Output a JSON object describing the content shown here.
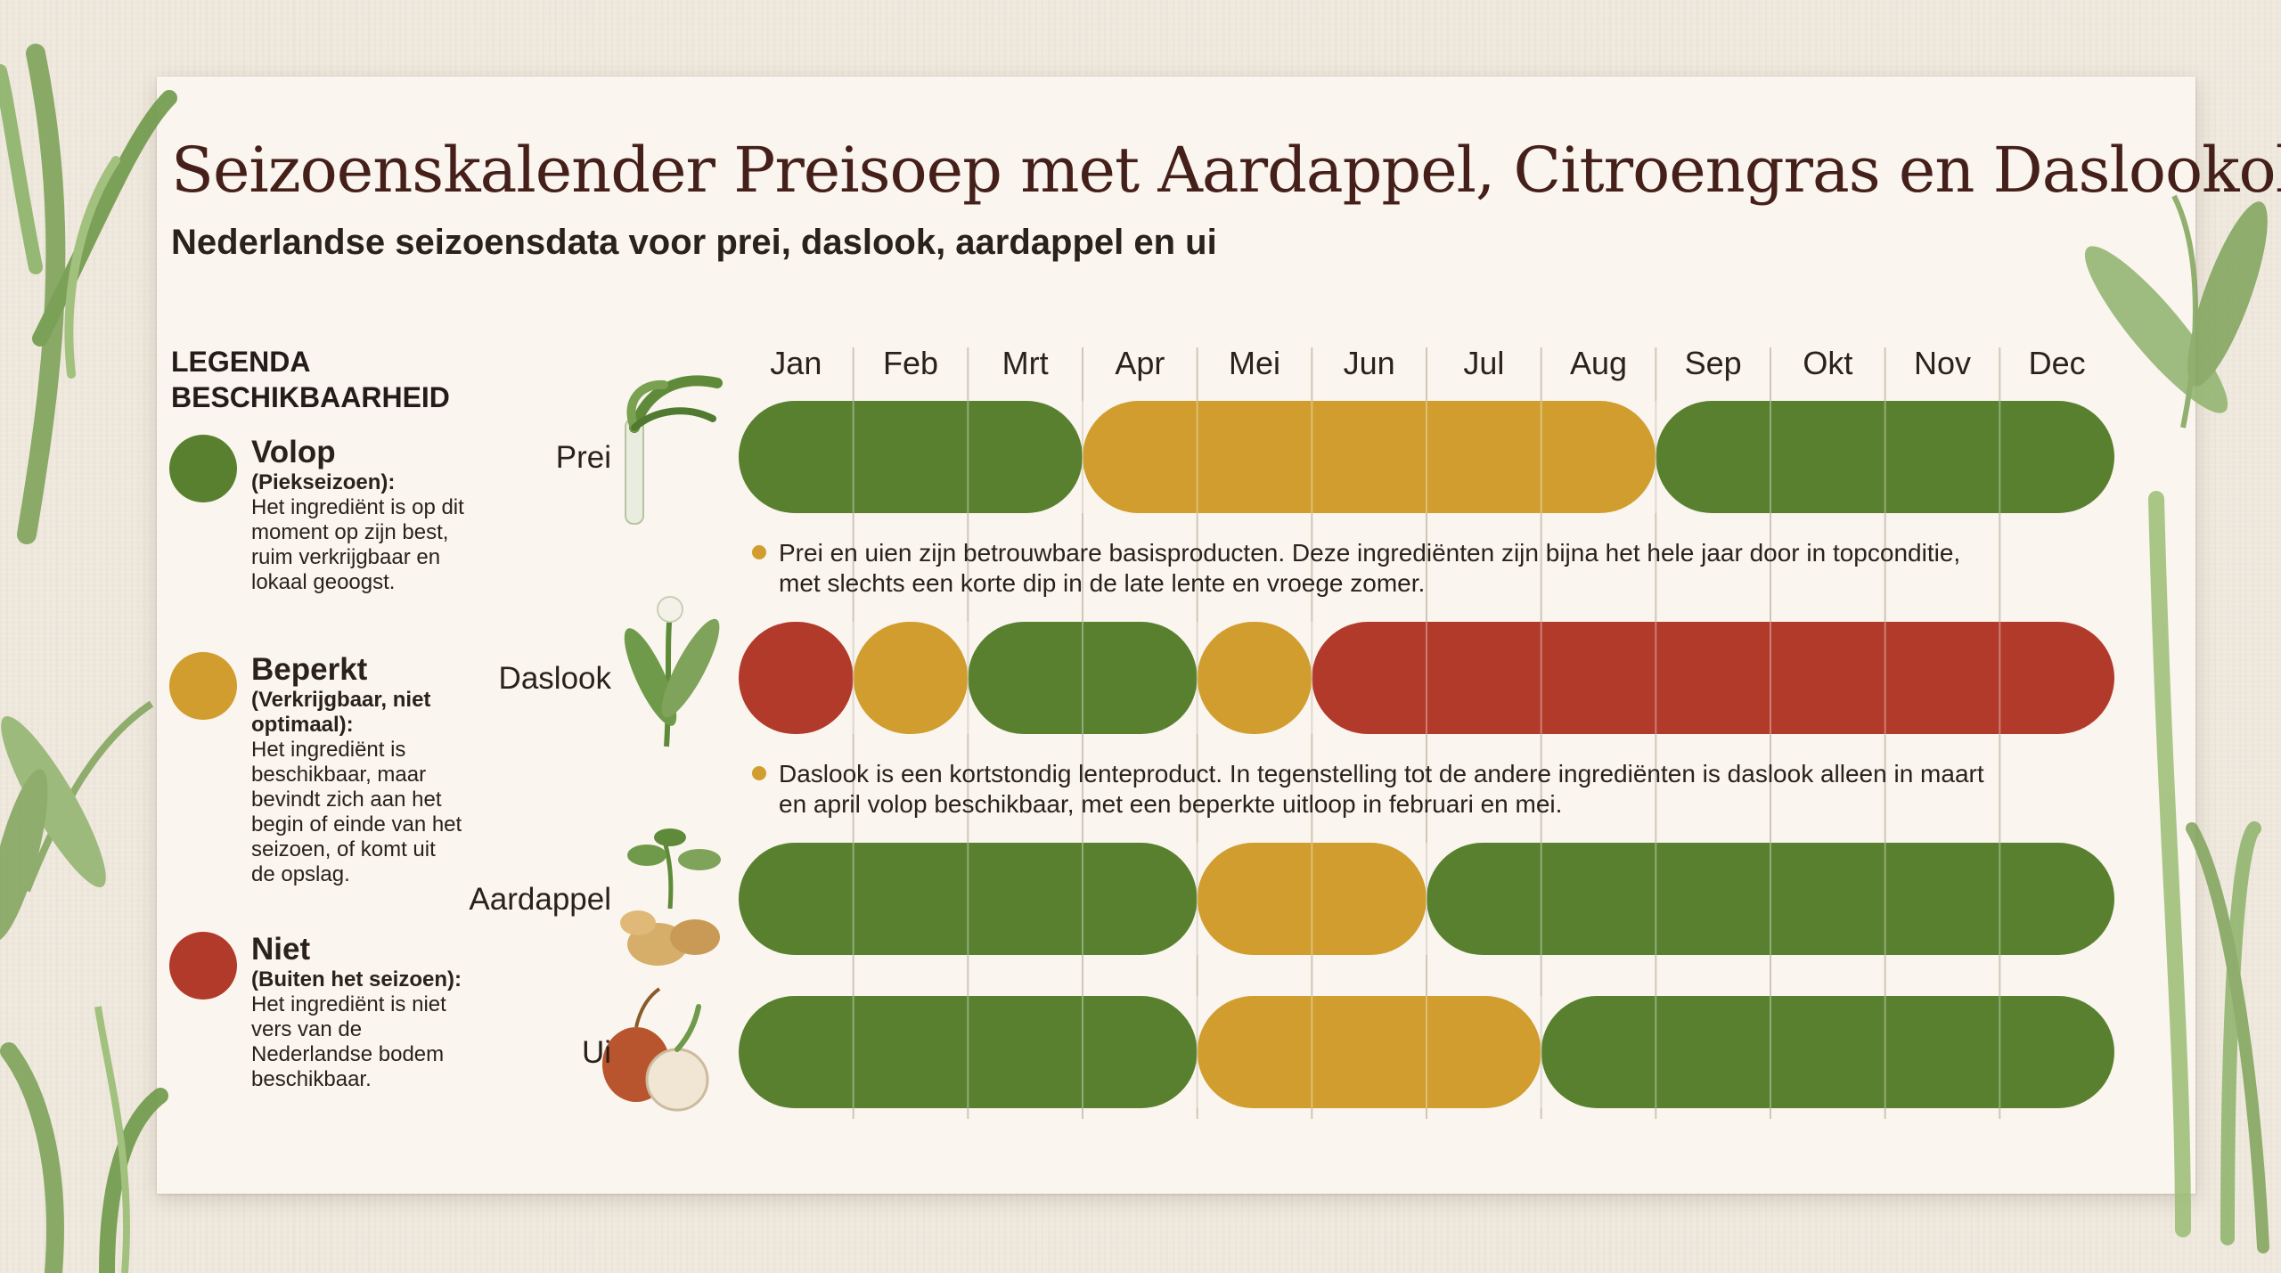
{
  "header": {
    "title": "Seizoenskalender Preisoep met Aardappel, Citroengras en Daslookolie",
    "subtitle": "Nederlandse seizoensdata voor prei, daslook, aardappel en ui"
  },
  "legend": {
    "heading_line1": "LEGENDA",
    "heading_line2": "BESCHIKBAARHEID",
    "items": [
      {
        "name": "Volop",
        "sub": "(Piekseizoen):",
        "desc": "Het ingrediënt is op dit moment op zijn best, ruim verkrijgbaar en lokaal geoogst.",
        "color": "#58802f"
      },
      {
        "name": "Beperkt",
        "sub": "(Verkrijgbaar, niet optimaal):",
        "desc": "Het ingrediënt is beschikbaar, maar bevindt zich aan het begin of einde van het seizoen, of komt uit de opslag.",
        "color": "#d09d2e"
      },
      {
        "name": "Niet",
        "sub": "(Buiten het seizoen):",
        "desc": "Het ingrediënt is niet vers van de Nederlandse bodem beschikbaar.",
        "color": "#b13a2b"
      }
    ]
  },
  "chart_data": {
    "type": "heatmap",
    "categories": [
      "Jan",
      "Feb",
      "Mrt",
      "Apr",
      "Mei",
      "Jun",
      "Jul",
      "Aug",
      "Sep",
      "Okt",
      "Nov",
      "Dec"
    ],
    "levels": {
      "volop": "#58802f",
      "beperkt": "#d09d2e",
      "niet": "#b13a2b"
    },
    "rows": [
      {
        "label": "Prei",
        "values": [
          "volop",
          "volop",
          "volop",
          "beperkt",
          "beperkt",
          "beperkt",
          "beperkt",
          "beperkt",
          "volop",
          "volop",
          "volop",
          "volop"
        ],
        "note": [
          "Prei en uien zijn betrouwbare basisproducten. Deze ingrediënten zijn bijna het hele jaar door in topconditie,",
          "met slechts een korte dip in de late lente en vroege zomer."
        ]
      },
      {
        "label": "Daslook",
        "values": [
          "niet",
          "beperkt",
          "volop",
          "volop",
          "beperkt",
          "niet",
          "niet",
          "niet",
          "niet",
          "niet",
          "niet",
          "niet"
        ],
        "note": [
          "Daslook is een kortstondig lenteproduct. In tegenstelling tot de andere ingrediënten is daslook alleen in maart",
          "en april volop beschikbaar, met een beperkte uitloop in februari en mei."
        ]
      },
      {
        "label": "Aardappel",
        "values": [
          "volop",
          "volop",
          "volop",
          "volop",
          "beperkt",
          "beperkt",
          "volop",
          "volop",
          "volop",
          "volop",
          "volop",
          "volop"
        ],
        "note": []
      },
      {
        "label": "Ui",
        "values": [
          "volop",
          "volop",
          "volop",
          "volop",
          "beperkt",
          "beperkt",
          "beperkt",
          "volop",
          "volop",
          "volop",
          "volop",
          "volop"
        ],
        "note": []
      }
    ]
  }
}
